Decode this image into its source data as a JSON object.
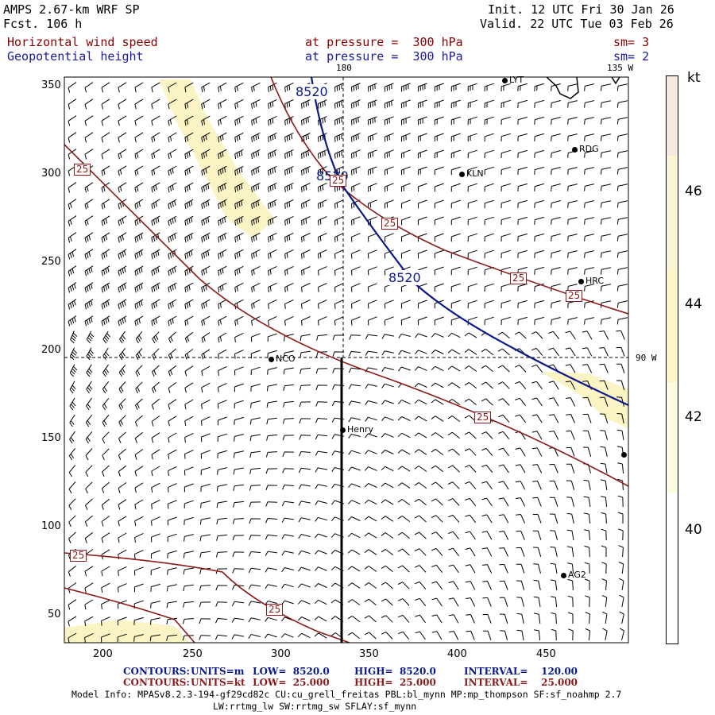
{
  "header": {
    "model": "AMPS 2.67-km WRF SP",
    "forecast": "Fcst. 106 h",
    "init": "Init. 12 UTC Fri 30 Jan 26",
    "valid": "Valid. 22 UTC Tue 03 Feb 26",
    "field1_name": "Horizontal wind speed",
    "field1_level": "at pressure =  300 hPa",
    "field1_smooth": "sm= 3",
    "field2_name": "Geopotential height",
    "field2_level": "at pressure =  300 hPa",
    "field2_smooth": "sm= 2"
  },
  "map": {
    "lon_labels": {
      "top_180": "180",
      "top_135w": "135 W",
      "right_90w": "90 W"
    },
    "x_ticks": [
      "200",
      "250",
      "300",
      "350",
      "400",
      "450"
    ],
    "y_ticks": [
      "350",
      "300",
      "250",
      "200",
      "150",
      "100",
      "50"
    ],
    "stations": [
      {
        "id": "LYT",
        "label": "LYT"
      },
      {
        "id": "RDG",
        "label": "RDG"
      },
      {
        "id": "KLN",
        "label": "KLN"
      },
      {
        "id": "HRC",
        "label": "HRC"
      },
      {
        "id": "NCO",
        "label": "NCO"
      },
      {
        "id": "Henry",
        "label": "Henry"
      },
      {
        "id": "AG2",
        "label": "AG2"
      },
      {
        "id": "edge",
        "label": ""
      }
    ],
    "height_contour_label": "8520",
    "speed_contour_label": "25"
  },
  "colorbar": {
    "unit": "kt",
    "labels": [
      "46",
      "44",
      "42",
      "40"
    ],
    "colors": [
      "#f6eade",
      "#fbf5d4",
      "#fbf5c8",
      "#fdfbe0",
      "#ffffff"
    ]
  },
  "footer": {
    "c1_title": "CONTOURS:",
    "c1_units": "UNITS=m",
    "c1_low": "LOW=  8520.0",
    "c1_high": "HIGH=  8520.0",
    "c1_interval": "INTERVAL=    120.00",
    "c2_title": "CONTOURS:",
    "c2_units": "UNITS=kt",
    "c2_low": "LOW=  25.000",
    "c2_high": "HIGH=  25.000",
    "c2_interval": "INTERVAL=    25.000",
    "info1": "Model Info: MPASv8.2.3-194-gf29cd82c CU:cu_grell_freitas PBL:bl_mynn MP:mp_thompson SF:sf_noahmp 2.7",
    "info2": "LW:rrtmg_lw SW:rrtmg_sw SFLAY:sf_mynn"
  },
  "colors": {
    "height": "#0a1a8c",
    "speed": "#8b1a1a",
    "shade": "#fbf3c4"
  }
}
